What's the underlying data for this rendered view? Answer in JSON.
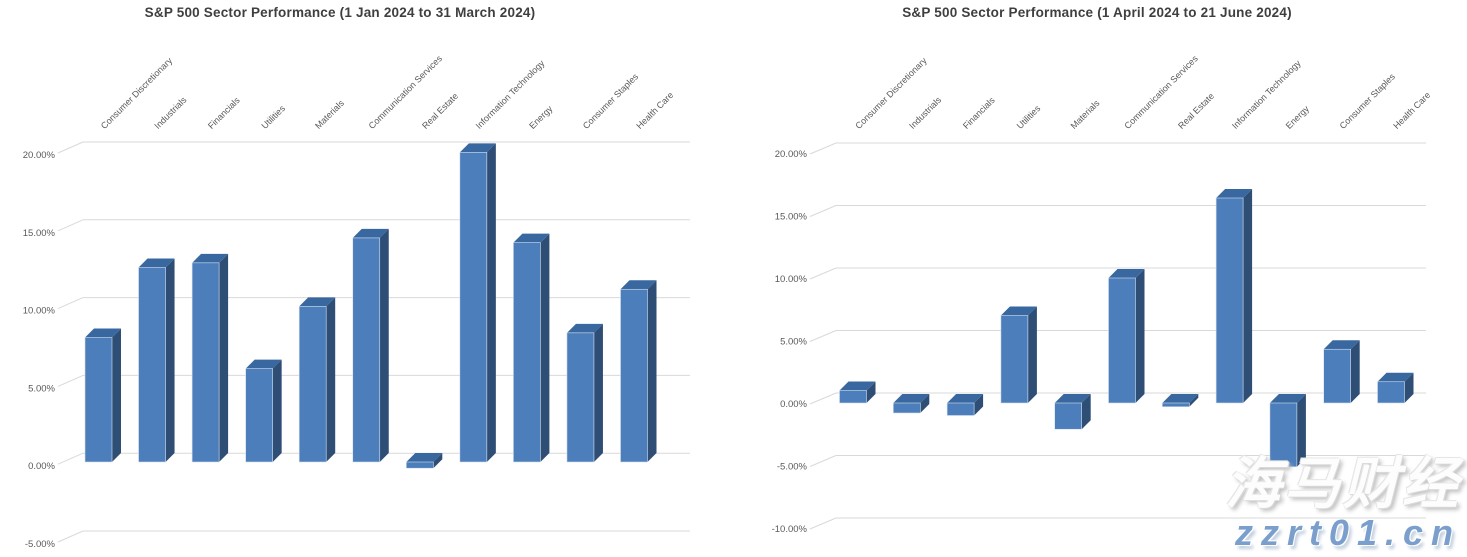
{
  "chart_data": [
    {
      "type": "bar",
      "style": "3d-column",
      "title": "S&P 500 Sector Performance (1 Jan 2024 to 31 March 2024)",
      "categories": [
        "Consumer Discretionary",
        "Industrials",
        "Financials",
        "Utilities",
        "Materials",
        "Communication Services",
        "Real Estate",
        "Information Technology",
        "Energy",
        "Consumer Staples",
        "Health Care"
      ],
      "values": [
        8.0,
        12.5,
        12.8,
        6.0,
        10.0,
        14.4,
        -0.4,
        19.9,
        14.1,
        8.3,
        11.1
      ],
      "value_unit": "%",
      "y_tick_labels": [
        "20.00%",
        "15.00%",
        "10.00%",
        "5.00%",
        "0.00%",
        "-5.00%"
      ],
      "ylim": [
        -5,
        20
      ],
      "grid": true,
      "legend": "none",
      "category_label_position": "top-rotated-45"
    },
    {
      "type": "bar",
      "style": "3d-column",
      "title": "S&P 500 Sector Performance (1 April 2024 to 21 June 2024)",
      "categories": [
        "Consumer Discretionary",
        "Industrials",
        "Financials",
        "Utilities",
        "Materials",
        "Communication Services",
        "Real Estate",
        "Information Technology",
        "Energy",
        "Consumer Staples",
        "Health Care"
      ],
      "values": [
        1.0,
        -0.8,
        -1.0,
        7.0,
        -2.1,
        10.0,
        -0.3,
        16.4,
        -5.1,
        4.3,
        1.7
      ],
      "value_unit": "%",
      "y_tick_labels": [
        "20.00%",
        "15.00%",
        "10.00%",
        "5.00%",
        "0.00%",
        "-5.00%",
        "-10.00%"
      ],
      "ylim": [
        -10,
        20
      ],
      "grid": true,
      "legend": "none",
      "category_label_position": "top-rotated-45"
    }
  ],
  "colors": {
    "bar_front": "#4d7ebc",
    "bar_top": "#38689f",
    "bar_side": "#2e4e75",
    "bar_edge": "#d4e0ef",
    "gridline": "#d9d9d9",
    "axis_text": "#595959",
    "title_text": "#3f3f3f",
    "watermark_domain": "#7b9fcd",
    "watermark_cjk": "#fdfdfd"
  },
  "watermark": {
    "cjk_text": "海马财经",
    "domain_text": "zzrt01.cn"
  }
}
